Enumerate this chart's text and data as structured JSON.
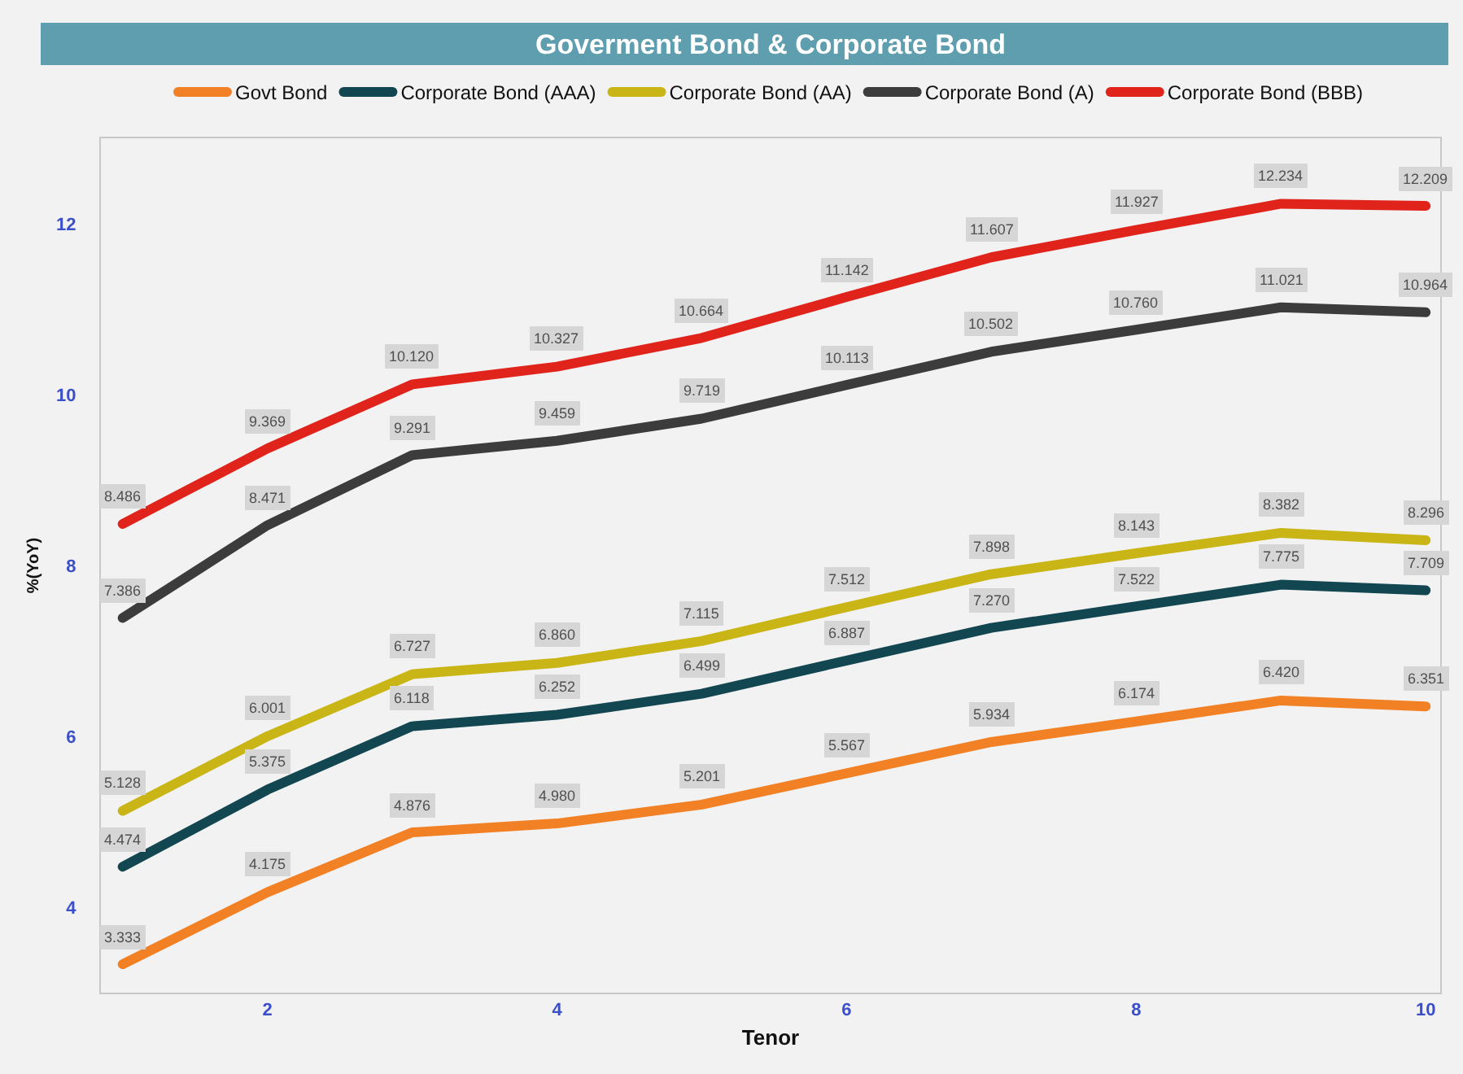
{
  "chart_data": {
    "type": "line",
    "title": "Goverment Bond & Corporate Bond",
    "xlabel": "Tenor",
    "ylabel": "%(YoY)",
    "x": [
      1,
      2,
      3,
      4,
      5,
      6,
      7,
      8,
      9,
      10
    ],
    "xlim": [
      0.85,
      10.1
    ],
    "xticks": [
      2,
      4,
      6,
      8,
      10
    ],
    "ylim": [
      3,
      13
    ],
    "yticks": [
      4,
      6,
      8,
      10,
      12
    ],
    "legend": "top",
    "grid": false,
    "series": [
      {
        "name": "Govt Bond",
        "color": "#f28025",
        "values": [
          3.333,
          4.175,
          4.876,
          4.98,
          5.201,
          5.567,
          5.934,
          6.174,
          6.42,
          6.351
        ],
        "value_labels": [
          "3.333",
          "4.175",
          "4.876",
          "4.980",
          "5.201",
          "5.567",
          "5.934",
          "6.174",
          "6.420",
          "6.351"
        ]
      },
      {
        "name": "Corporate Bond (AAA)",
        "color": "#124650",
        "values": [
          4.474,
          5.375,
          6.118,
          6.252,
          6.499,
          6.887,
          7.27,
          7.522,
          7.775,
          7.709
        ],
        "value_labels": [
          "4.474",
          "5.375",
          "6.118",
          "6.252",
          "6.499",
          "6.887",
          "7.270",
          "7.522",
          "7.775",
          "7.709"
        ]
      },
      {
        "name": "Corporate Bond (AA)",
        "color": "#c9b516",
        "values": [
          5.128,
          6.001,
          6.727,
          6.86,
          7.115,
          7.512,
          7.898,
          8.143,
          8.382,
          8.296
        ],
        "value_labels": [
          "5.128",
          "6.001",
          "6.727",
          "6.860",
          "7.115",
          "7.512",
          "7.898",
          "8.143",
          "8.382",
          "8.296"
        ]
      },
      {
        "name": "Corporate Bond (A)",
        "color": "#3c3c3c",
        "values": [
          7.386,
          8.471,
          9.291,
          9.459,
          9.719,
          10.113,
          10.502,
          10.76,
          11.021,
          10.964
        ],
        "value_labels": [
          "7.386",
          "8.471",
          "9.291",
          "9.459",
          "9.719",
          "10.113",
          "10.502",
          "10.760",
          "11.021",
          "10.964"
        ]
      },
      {
        "name": "Corporate Bond (BBB)",
        "color": "#e0241c",
        "values": [
          8.486,
          9.369,
          10.12,
          10.327,
          10.664,
          11.142,
          11.607,
          11.927,
          12.234,
          12.209
        ],
        "value_labels": [
          "8.486",
          "9.369",
          "10.120",
          "10.327",
          "10.664",
          "11.142",
          "11.607",
          "11.927",
          "12.234",
          "12.209"
        ]
      }
    ]
  }
}
